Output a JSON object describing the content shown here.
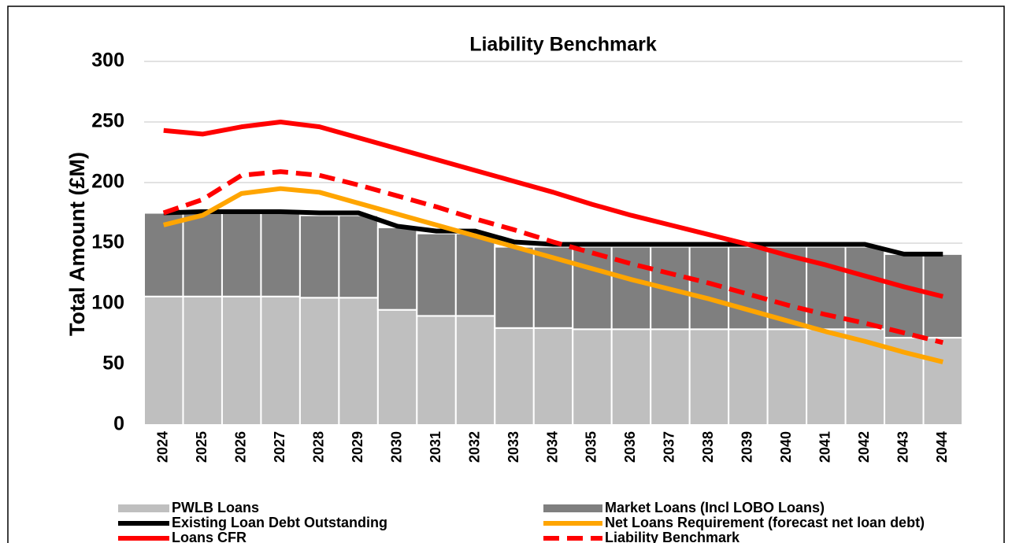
{
  "chart_data": {
    "type": "bar",
    "stacked": true,
    "title": "Liability Benchmark",
    "y_label": "Total Amount (£M)",
    "categories": [
      "2024",
      "2025",
      "2026",
      "2027",
      "2028",
      "2029",
      "2030",
      "2031",
      "2032",
      "2033",
      "2034",
      "2035",
      "2036",
      "2037",
      "2038",
      "2039",
      "2040",
      "2041",
      "2042",
      "2043",
      "2044"
    ],
    "series": [
      {
        "name": "PWLB Loans",
        "type": "bar",
        "color": "#bfbfbf",
        "values": [
          106,
          106,
          106,
          106,
          105,
          105,
          95,
          90,
          90,
          80,
          80,
          79,
          79,
          79,
          79,
          79,
          79,
          79,
          79,
          72,
          72
        ]
      },
      {
        "name": "Market Loans (Incl LOBO Loans)",
        "type": "bar",
        "color": "#7f7f7f",
        "values": [
          69,
          69,
          69,
          69,
          68,
          68,
          68,
          68,
          68,
          67,
          67,
          68,
          68,
          68,
          68,
          68,
          68,
          68,
          68,
          69,
          69
        ]
      },
      {
        "name": "Existing Loan Debt Outstanding",
        "type": "line",
        "color": "#000000",
        "values": [
          175,
          176,
          176,
          176,
          175,
          175,
          164,
          160,
          160,
          151,
          149,
          149,
          149,
          149,
          149,
          149,
          149,
          149,
          149,
          141,
          141
        ]
      },
      {
        "name": "Net Loans Requirement (forecast net loan debt)",
        "type": "line",
        "color": "#ffa500",
        "values": [
          165,
          173,
          191,
          195,
          192,
          183,
          174,
          165,
          156,
          147,
          138,
          129,
          120,
          112,
          104,
          95,
          86,
          77,
          69,
          60,
          52
        ]
      },
      {
        "name": "Loans CFR",
        "type": "line",
        "color": "#ff0000",
        "values": [
          243,
          240,
          246,
          250,
          246,
          237,
          228,
          219,
          210,
          201,
          192,
          182,
          173,
          165,
          157,
          149,
          140,
          132,
          123,
          114,
          106
        ]
      },
      {
        "name": "Liability Benchmark",
        "type": "line",
        "dashed": true,
        "color": "#ff0000",
        "values": [
          175,
          186,
          206,
          209,
          206,
          198,
          189,
          180,
          170,
          161,
          151,
          142,
          133,
          125,
          117,
          108,
          99,
          91,
          84,
          76,
          68
        ]
      }
    ],
    "ylim": [
      0,
      300
    ],
    "yticks": [
      0,
      50,
      100,
      150,
      200,
      250,
      300
    ],
    "grid": true
  }
}
